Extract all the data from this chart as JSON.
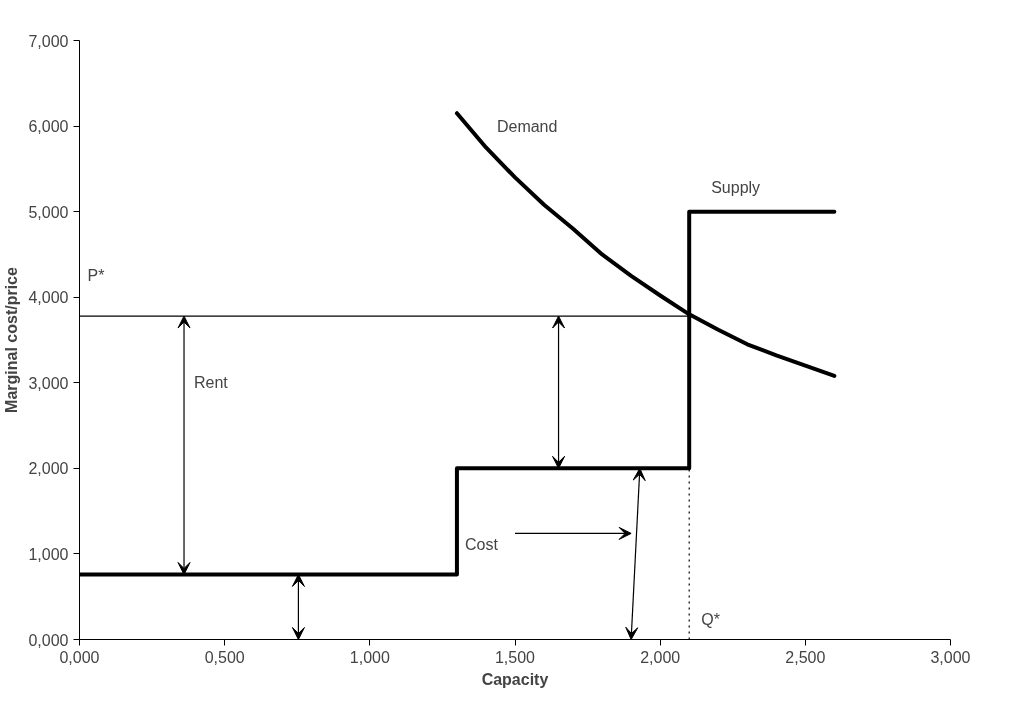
{
  "chart_data": {
    "type": "line",
    "xlabel": "Capacity",
    "ylabel": "Marginal cost/price",
    "series": [
      {
        "type": "step",
        "color": "#000000",
        "x": [
          0,
          1.3,
          2.1,
          2.6
        ],
        "values": [
          0.76,
          2.0,
          5.0,
          5.0
        ]
      },
      {
        "color": "#000000",
        "x": [
          1.3,
          1.4,
          1.5,
          1.6,
          1.7,
          1.8,
          1.9,
          2.0,
          2.1,
          2.2,
          2.3,
          2.4,
          2.5,
          2.6
        ],
        "values": [
          6.15,
          5.75,
          5.4,
          5.08,
          4.8,
          4.5,
          4.25,
          4.02,
          3.8,
          3.62,
          3.45,
          3.32,
          3.2,
          3.08
        ]
      }
    ],
    "ref_lines": [
      {
        "axis": "y",
        "value": 3.78,
        "label": "P*",
        "color": "#000000"
      },
      {
        "axis": "x",
        "value": 2.1,
        "label": "Q*",
        "color": "#000000",
        "line_style": "dotted"
      }
    ],
    "annotations": [
      "Demand",
      "Supply",
      "Rent",
      "Cost"
    ],
    "xlim": [
      0,
      3
    ],
    "ylim": [
      0,
      7
    ],
    "xticks": [
      {
        "value": 0,
        "label": "0,000"
      },
      {
        "value": 0.5,
        "label": "0,500"
      },
      {
        "value": 1,
        "label": "1,000"
      },
      {
        "value": 1.5,
        "label": "1,500"
      },
      {
        "value": 2,
        "label": "2,000"
      },
      {
        "value": 2.5,
        "label": "2,500"
      },
      {
        "value": 3,
        "label": "3,000"
      }
    ],
    "yticks": [
      {
        "value": 0,
        "label": "0,000"
      },
      {
        "value": 1,
        "label": "1,000"
      },
      {
        "value": 2,
        "label": "2,000"
      },
      {
        "value": 3,
        "label": "3,000"
      },
      {
        "value": 4,
        "label": "4,000"
      },
      {
        "value": 5,
        "label": "5,000"
      },
      {
        "value": 6,
        "label": "6,000"
      },
      {
        "value": 7,
        "label": "7,000"
      }
    ],
    "grid": false
  }
}
